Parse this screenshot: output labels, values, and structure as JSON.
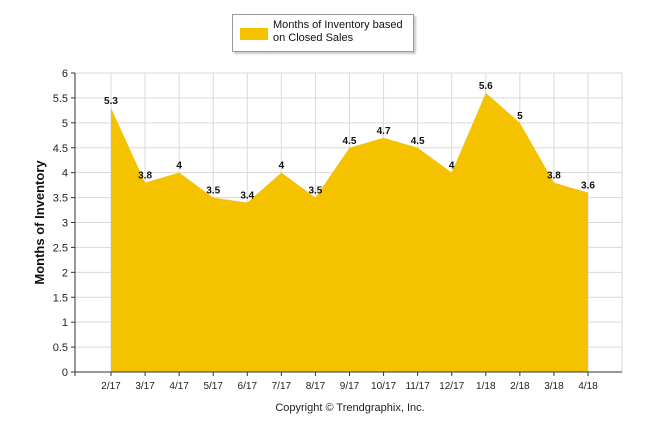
{
  "chart_data": {
    "type": "area",
    "categories": [
      "2/17",
      "3/17",
      "4/17",
      "5/17",
      "6/17",
      "7/17",
      "8/17",
      "9/17",
      "10/17",
      "11/17",
      "12/17",
      "1/18",
      "2/18",
      "3/18",
      "4/18"
    ],
    "series": [
      {
        "name": "Months of Inventory based on Closed Sales",
        "values": [
          5.3,
          3.8,
          4,
          3.5,
          3.4,
          4,
          3.5,
          4.5,
          4.7,
          4.5,
          4,
          5.6,
          5,
          3.8,
          3.6
        ],
        "labels": [
          "5.3",
          "3.8",
          "4",
          "3.5",
          "3.4",
          "4",
          "3.5",
          "4.5",
          "4.7",
          "4.5",
          "4",
          "5.6",
          "5",
          "3.8",
          "3.6"
        ]
      }
    ],
    "ylabel": "Months of Inventory",
    "ylim": [
      0,
      6
    ],
    "yticks": [
      "0",
      "0.5",
      "1",
      "1.5",
      "2",
      "2.5",
      "3",
      "3.5",
      "4",
      "4.5",
      "5",
      "5.5",
      "6"
    ],
    "grid": true,
    "legend_position": "top-center",
    "colors": {
      "area": "#F5C200",
      "grid": "#d9d9d9",
      "axis": "#333333"
    }
  },
  "legend": {
    "label": "Months of Inventory based on Closed Sales"
  },
  "footer": {
    "copyright": "Copyright © Trendgraphix, Inc."
  }
}
